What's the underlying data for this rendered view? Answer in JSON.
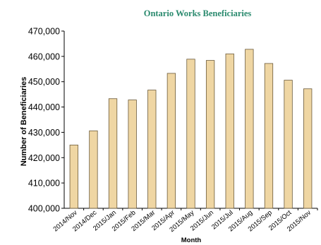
{
  "chart_data": {
    "type": "bar",
    "title": "Ontario Works Beneficiaries",
    "xlabel": "Month",
    "ylabel": "Number of Beneficiaries",
    "categories": [
      "2014/Nov",
      "2014/Dec",
      "2015/Jan",
      "2015/Feb",
      "2015/Mar",
      "2015/Apr",
      "2015/May",
      "2015/Jun",
      "2015/Jul",
      "2015/Aug",
      "2015/Sep",
      "2015/Oct",
      "2015/Nov"
    ],
    "values": [
      425000,
      430600,
      443300,
      442800,
      446700,
      453300,
      458900,
      458400,
      461000,
      462800,
      457200,
      450600,
      447200
    ],
    "ylim": [
      400000,
      470000
    ],
    "yticks": [
      400000,
      410000,
      420000,
      430000,
      440000,
      450000,
      460000,
      470000
    ],
    "ytick_labels": [
      "400,000",
      "410,000",
      "420,000",
      "430,000",
      "440,000",
      "450,000",
      "460,000",
      "470,000"
    ],
    "grid": false,
    "legend": "none",
    "colors": {
      "bar_fill": "#efd6a3",
      "bar_stroke": "#6b5a3a",
      "title": "#2a8a6e",
      "axis": "#000000",
      "text": "#000000"
    }
  }
}
